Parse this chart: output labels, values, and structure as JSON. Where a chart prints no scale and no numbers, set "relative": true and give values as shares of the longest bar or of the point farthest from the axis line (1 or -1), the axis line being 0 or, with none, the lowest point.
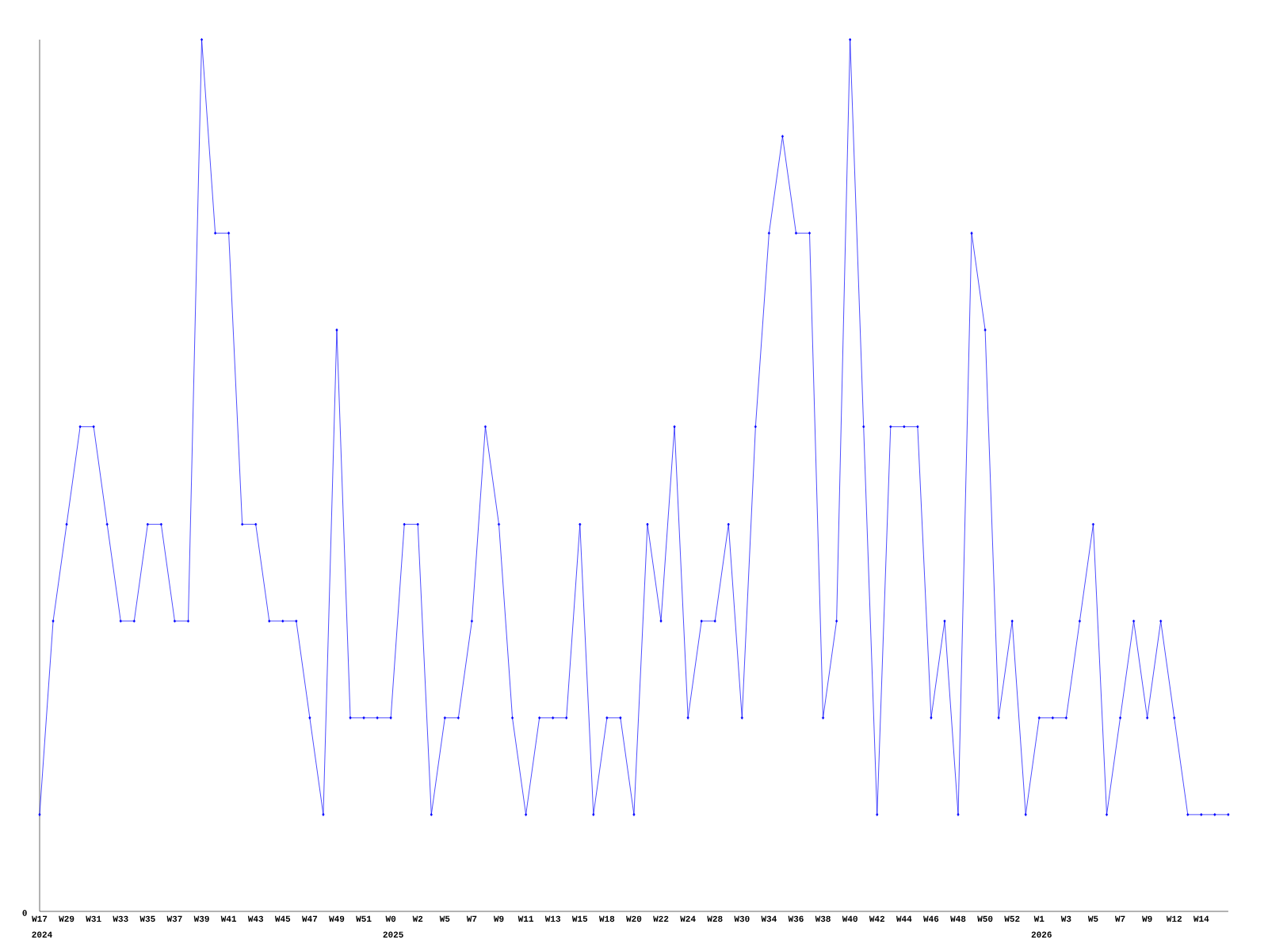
{
  "chart_data": {
    "type": "line",
    "relative": true,
    "marker": "diamond",
    "line_style": "solid",
    "grid": false,
    "categories": [
      "W17",
      null,
      "W29",
      null,
      "W31",
      null,
      "W33",
      null,
      "W35",
      null,
      "W37",
      null,
      "W39",
      null,
      "W41",
      null,
      "W43",
      null,
      "W45",
      null,
      "W47",
      null,
      "W49",
      null,
      "W51",
      null,
      "W0",
      null,
      "W2",
      null,
      "W5",
      null,
      "W7",
      null,
      "W9",
      null,
      "W11",
      null,
      "W13",
      null,
      "W15",
      null,
      "W18",
      null,
      "W20",
      null,
      "W22",
      null,
      "W24",
      null,
      "W28",
      null,
      "W30",
      null,
      "W34",
      null,
      "W36",
      null,
      "W38",
      null,
      "W40",
      null,
      "W42",
      null,
      "W44",
      null,
      "W46",
      null,
      "W48",
      null,
      "W50",
      null,
      "W52",
      null,
      "W1",
      null,
      "W3",
      null,
      "W5",
      null,
      "W7",
      null,
      "W9",
      null,
      "W12",
      null,
      "W14",
      null,
      null
    ],
    "series": [
      {
        "color": "#0000ff",
        "values": [
          0.111,
          0.333,
          0.444,
          0.556,
          0.556,
          0.444,
          0.333,
          0.333,
          0.444,
          0.444,
          0.333,
          0.333,
          1,
          0.778,
          0.778,
          0.444,
          0.444,
          0.333,
          0.333,
          0.333,
          0.222,
          0.111,
          0.667,
          0.222,
          0.222,
          0.222,
          0.222,
          0.444,
          0.444,
          0.111,
          0.222,
          0.222,
          0.333,
          0.556,
          0.444,
          0.222,
          0.111,
          0.222,
          0.222,
          0.222,
          0.444,
          0.111,
          0.222,
          0.222,
          0.111,
          0.444,
          0.333,
          0.556,
          0.222,
          0.333,
          0.333,
          0.444,
          0.222,
          0.556,
          0.778,
          0.889,
          0.778,
          0.778,
          0.222,
          0.333,
          1,
          0.556,
          0.111,
          0.556,
          0.556,
          0.556,
          0.222,
          0.333,
          0.111,
          0.778,
          0.667,
          0.222,
          0.333,
          0.111,
          0.222,
          0.222,
          0.222,
          0.333,
          0.444,
          0.111,
          0.222,
          0.333,
          0.222,
          0.333,
          0.222,
          0.111,
          0.111,
          0.111,
          0.111
        ]
      }
    ],
    "annotations": [
      "0",
      "2024",
      "2025",
      "2026"
    ]
  }
}
